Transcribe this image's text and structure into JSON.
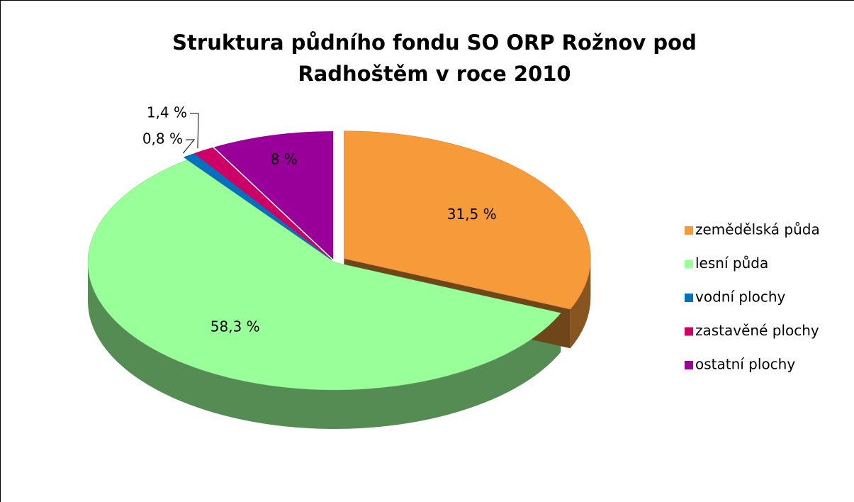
{
  "chart_data": {
    "type": "pie3d",
    "title": "Struktura půdního fondu SO ORP Rožnov pod Radhoštěm v roce 2010",
    "categories": [
      "zemědělská půda",
      "lesní půda",
      "vodní plochy",
      "zastavěné plochy",
      "ostatní plochy"
    ],
    "values": [
      31.5,
      58.3,
      0.8,
      1.4,
      8
    ],
    "value_labels": [
      "31,5 %",
      "58,3 %",
      "0,8 %",
      "1,4 %",
      "8 %"
    ],
    "colors": [
      "#f79a3a",
      "#99ff99",
      "#0070c0",
      "#cc0066",
      "#990099"
    ],
    "legend": "right"
  }
}
